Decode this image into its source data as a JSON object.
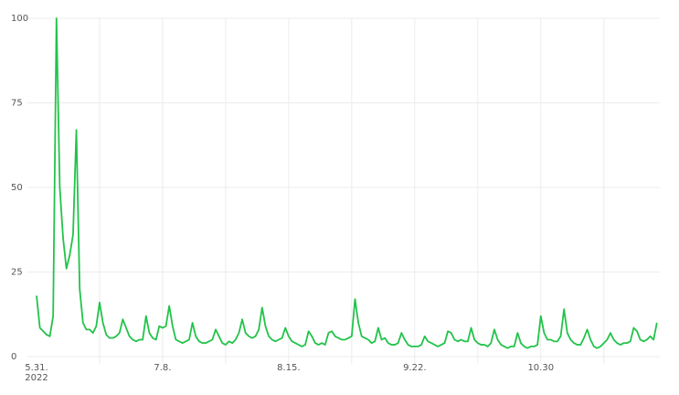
{
  "chart_data": {
    "type": "line",
    "categories": [
      "5.31.",
      null,
      null,
      null,
      null,
      null,
      null,
      null,
      null,
      null,
      null,
      null,
      null,
      null,
      null,
      null,
      null,
      null,
      null,
      null,
      null,
      null,
      null,
      null,
      null,
      null,
      null,
      null,
      null,
      null,
      null,
      null,
      null,
      null,
      null,
      null,
      null,
      null,
      "7.8.",
      null,
      null,
      null,
      null,
      null,
      null,
      null,
      null,
      null,
      null,
      null,
      null,
      null,
      null,
      null,
      null,
      null,
      null,
      null,
      null,
      null,
      null,
      null,
      null,
      null,
      null,
      null,
      null,
      null,
      null,
      null,
      null,
      null,
      null,
      null,
      null,
      null,
      "8.15.",
      null,
      null,
      null,
      null,
      null,
      null,
      null,
      null,
      null,
      null,
      null,
      null,
      null,
      null,
      null,
      null,
      null,
      null,
      null,
      null,
      null,
      null,
      null,
      null,
      null,
      null,
      null,
      null,
      null,
      null,
      null,
      null,
      null,
      null,
      null,
      null,
      null,
      "9.22.",
      null,
      null,
      null,
      null,
      null,
      null,
      null,
      null,
      null,
      null,
      null,
      null,
      null,
      null,
      null,
      null,
      null,
      null,
      null,
      null,
      null,
      null,
      null,
      null,
      null,
      null,
      null,
      null,
      null,
      null,
      null,
      null,
      null,
      null,
      null,
      null,
      null,
      "10.30",
      null,
      null,
      null,
      null,
      null,
      null,
      null,
      null,
      null,
      null,
      null,
      null,
      null,
      null,
      null,
      null,
      null,
      null,
      null,
      null,
      null,
      null,
      null,
      null,
      null,
      null,
      null,
      null,
      null,
      null,
      null,
      null,
      null,
      null,
      null
    ],
    "x_year": "2022",
    "series": [
      {
        "color": "#22c34a",
        "values": [
          18,
          8.5,
          7.5,
          6.5,
          6,
          12,
          100,
          50,
          35,
          26,
          30,
          36,
          67,
          20,
          10,
          8,
          8,
          7,
          9,
          16,
          10,
          6.5,
          5.5,
          5.5,
          6,
          7,
          11,
          8.5,
          6,
          5,
          4.5,
          5,
          5,
          12,
          7,
          5.5,
          5,
          9,
          8.5,
          9,
          15,
          9,
          5,
          4.5,
          4,
          4.5,
          5,
          10,
          6,
          4.5,
          4,
          4,
          4.5,
          5,
          8,
          6,
          4,
          3.5,
          4.5,
          4,
          5,
          7,
          11,
          7,
          6,
          5.5,
          6,
          8,
          14.5,
          9,
          6,
          5,
          4.5,
          5,
          5.5,
          8.5,
          6,
          4.5,
          4,
          3.5,
          3,
          3.5,
          7.5,
          6,
          4,
          3.5,
          4,
          3.5,
          7,
          7.5,
          6,
          5.5,
          5,
          5,
          5.5,
          6,
          17,
          10,
          6,
          5.5,
          5,
          4,
          4.5,
          8.5,
          5,
          5.5,
          4,
          3.5,
          3.5,
          4,
          7,
          5,
          3.5,
          3,
          3,
          3,
          3.5,
          6,
          4.5,
          4,
          3.5,
          3,
          3.5,
          4,
          7.5,
          7,
          5,
          4.5,
          5,
          4.5,
          4.5,
          8.5,
          5,
          4,
          3.5,
          3.5,
          3,
          4,
          8,
          5,
          3.5,
          3,
          2.5,
          3,
          3,
          7,
          4,
          3,
          2.5,
          3,
          3,
          3.5,
          12,
          7,
          5,
          5,
          4.5,
          4.5,
          6,
          14,
          7,
          5,
          4,
          3.5,
          3.5,
          5.5,
          8,
          5,
          3,
          2.5,
          3,
          4,
          5,
          7,
          5,
          4,
          3.5,
          4,
          4,
          4.5,
          8.5,
          7.5,
          5,
          4.5,
          5,
          6,
          5,
          10
        ]
      }
    ],
    "ylim": [
      0,
      100
    ],
    "yticks": [
      0,
      25,
      50,
      75,
      100
    ],
    "grid": true
  }
}
